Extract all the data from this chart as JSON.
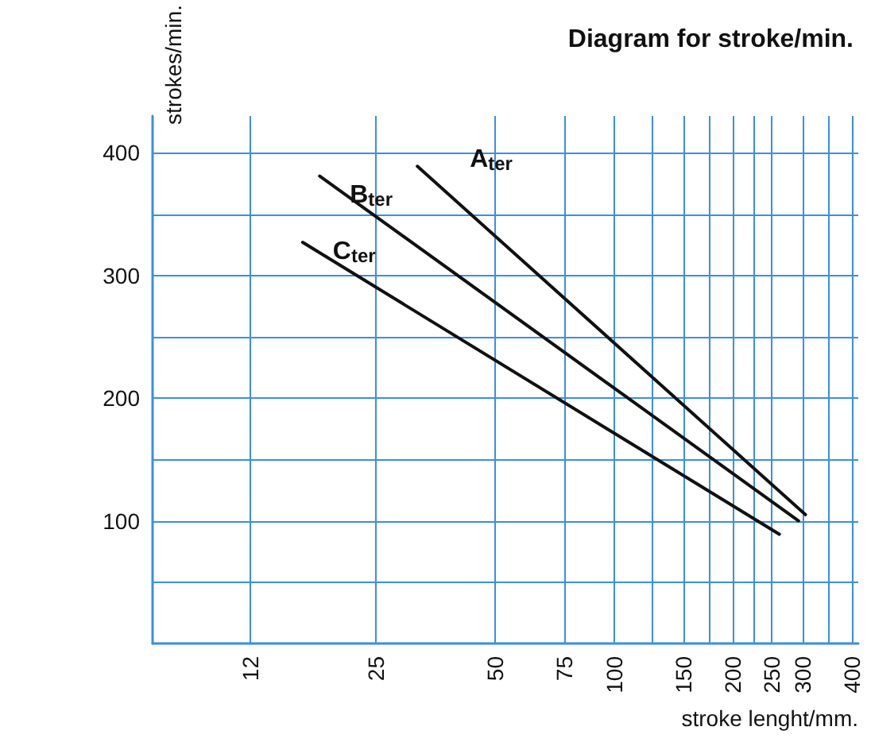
{
  "chart_data": {
    "type": "line",
    "title": "Diagram for stroke/min.",
    "xlabel": "stroke lenght/mm.",
    "ylabel": "strokes/min.",
    "log": "x",
    "xlim": [
      6.8,
      415
    ],
    "ylim": [
      0,
      430
    ],
    "xticks": [
      12,
      25,
      50,
      75,
      100,
      {
        "value": 125,
        "label": null
      },
      150,
      {
        "value": 175,
        "label": null
      },
      200,
      {
        "value": 225,
        "label": null
      },
      250,
      300,
      {
        "value": 350,
        "label": null
      },
      400
    ],
    "yticks": [
      {
        "value": 50,
        "label": null
      },
      100,
      {
        "value": 150,
        "label": null
      },
      200,
      {
        "value": 250,
        "label": null
      },
      300,
      {
        "value": 350,
        "label": null
      },
      400
    ],
    "grid": true,
    "legend": false,
    "marker": "none",
    "line_style": "solid",
    "series": [
      {
        "name": "A$_{ter}$",
        "color": "#111111",
        "x": [
          31.8,
          305
        ],
        "values": [
          389,
          105
        ]
      },
      {
        "name": "B$_{ter}$",
        "color": "#111111",
        "x": [
          18,
          293
        ],
        "values": [
          381,
          100
        ]
      },
      {
        "name": "C$_{ter}$",
        "color": "#111111",
        "x": [
          16.3,
          262
        ],
        "values": [
          327,
          89
        ]
      }
    ]
  }
}
